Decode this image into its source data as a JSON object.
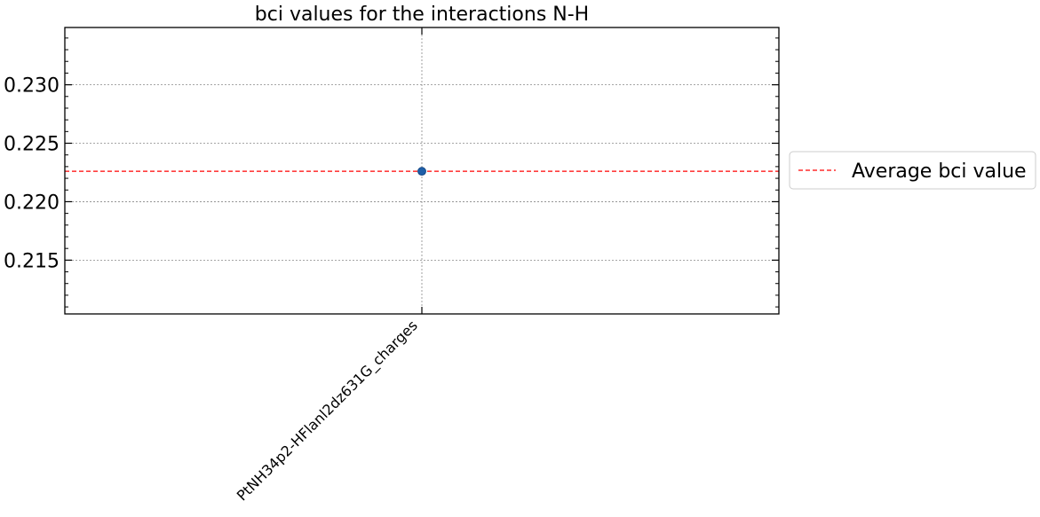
{
  "chart_data": {
    "type": "scatter",
    "title": "bci values for the interactions N-H",
    "xlabel": "",
    "ylabel": "",
    "categories": [
      "PtNH34p2-HFlanl2dz631G_charges"
    ],
    "series": [
      {
        "values": [
          0.2226
        ],
        "color": "#1f5fa8"
      }
    ],
    "reference_line": {
      "name": "Average bci value",
      "value": 0.2226,
      "color": "#ff0000",
      "style": "dashed"
    },
    "ylim": [
      0.2104,
      0.2349
    ],
    "yticks": [
      0.215,
      0.22,
      0.225,
      0.23
    ],
    "ytick_labels": [
      "0.215",
      "0.220",
      "0.225",
      "0.230"
    ],
    "grid": true,
    "legend_position": "outside-right"
  }
}
